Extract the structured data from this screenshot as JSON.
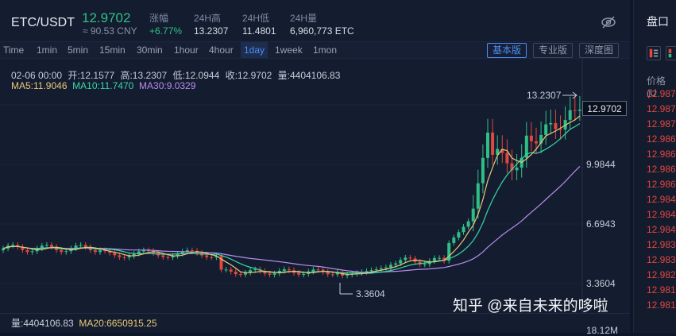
{
  "header": {
    "pair": "ETC/USDT",
    "price": "12.9702",
    "cny": "≈ 90.53 CNY",
    "stats": [
      {
        "label": "涨幅",
        "value": "+6.77%",
        "green": true
      },
      {
        "label": "24H高",
        "value": "13.2307"
      },
      {
        "label": "24H低",
        "value": "11.4801"
      },
      {
        "label": "24H量",
        "value": "6,960,773 ETC"
      }
    ],
    "eye_icon": "eye-off-icon"
  },
  "timeframes": [
    "Time",
    "1min",
    "5min",
    "15min",
    "30min",
    "1hour",
    "4hour",
    "1day",
    "1week",
    "1mon"
  ],
  "active_timeframe": "1day",
  "views": [
    "基本版",
    "专业版",
    "深度图"
  ],
  "active_view": "基本版",
  "ohlc": {
    "date": "02-06 00:00",
    "open": "开:12.1577",
    "high": "高:13.2307",
    "low": "低:12.0944",
    "close": "收:12.9702",
    "volume": "量:4404106.83"
  },
  "ma": {
    "ma5": "MA5:11.9046",
    "ma10": "MA10:11.7470",
    "ma30": "MA30:9.0329"
  },
  "colors": {
    "up": "#2fbf86",
    "down": "#e0473f",
    "ma5": "#e8c87a",
    "ma10": "#38d7a8",
    "ma30": "#b98cf0",
    "accent": "#4e8ef5"
  },
  "chart": {
    "current_price": "12.9702",
    "high_label": "13.2307",
    "low_label": "3.3604",
    "axis": [
      "9.9844",
      "6.6943",
      "3.3604"
    ]
  },
  "volume": {
    "text": "量:4404106.83",
    "ma20": "MA20:6650915.25",
    "axis": "18.12M"
  },
  "watermark": "知乎 @来自未来的哆啦",
  "side": {
    "title": "盘口",
    "col": "价格 (U",
    "rows": [
      "12.987",
      "12.987",
      "12.987",
      "12.986",
      "12.986",
      "12.986",
      "12.986",
      "12.984",
      "12.984",
      "12.984",
      "12.983",
      "12.983",
      "12.982",
      "12.981",
      "12.981"
    ]
  }
}
